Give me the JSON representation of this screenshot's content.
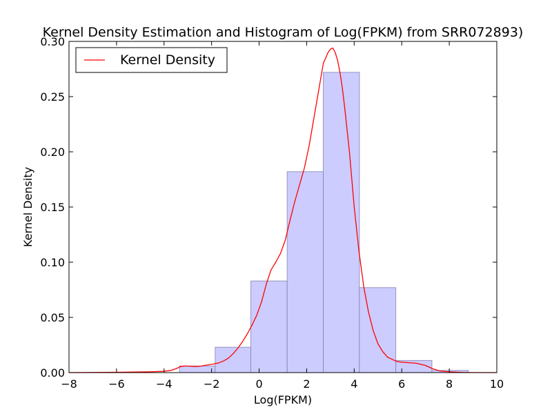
{
  "chart_data": {
    "type": "bar",
    "title": "Kernel Density Estimation and Histogram of Log(FPKM) from SRR072893)",
    "xlabel": "Log(FPKM)",
    "ylabel": "Kernel Density",
    "xlim": [
      -8,
      10
    ],
    "ylim": [
      0,
      0.3
    ],
    "xticks": [
      -8,
      -6,
      -4,
      -2,
      0,
      2,
      4,
      6,
      8,
      10
    ],
    "yticks": [
      0.0,
      0.05,
      0.1,
      0.15,
      0.2,
      0.25,
      0.3
    ],
    "xtick_labels": [
      "−8",
      "−6",
      "−4",
      "−2",
      "0",
      "2",
      "4",
      "6",
      "8",
      "10"
    ],
    "ytick_labels": [
      "0.00",
      "0.05",
      "0.10",
      "0.15",
      "0.20",
      "0.25",
      "0.30"
    ],
    "legend": {
      "location": "top-left",
      "entries": [
        {
          "label": "Kernel Density",
          "color": "#ff0000"
        }
      ]
    },
    "grid": false,
    "histogram": {
      "color": "#ccccff",
      "edge_color": "#8080b0",
      "bins": [
        {
          "x0": -3.35,
          "x1": -1.85,
          "value": 0.006
        },
        {
          "x0": -1.85,
          "x1": -0.35,
          "value": 0.023
        },
        {
          "x0": -0.35,
          "x1": 1.18,
          "value": 0.083
        },
        {
          "x0": 1.18,
          "x1": 2.7,
          "value": 0.182
        },
        {
          "x0": 2.7,
          "x1": 4.22,
          "value": 0.272
        },
        {
          "x0": 4.22,
          "x1": 5.75,
          "value": 0.077
        },
        {
          "x0": 5.75,
          "x1": 7.27,
          "value": 0.011
        },
        {
          "x0": 7.27,
          "x1": 8.8,
          "value": 0.002
        }
      ]
    },
    "series": [
      {
        "name": "Kernel Density",
        "color": "#ff0000",
        "x": [
          -8,
          -6,
          -5,
          -4.5,
          -4,
          -3.7,
          -3.5,
          -3.3,
          -3.1,
          -2.9,
          -2.7,
          -2.5,
          -2.3,
          -2.1,
          -1.9,
          -1.7,
          -1.5,
          -1.3,
          -1.1,
          -0.9,
          -0.7,
          -0.5,
          -0.3,
          -0.1,
          0.1,
          0.3,
          0.5,
          0.7,
          0.9,
          1.1,
          1.3,
          1.5,
          1.7,
          1.9,
          2.1,
          2.3,
          2.5,
          2.7,
          2.9,
          3.0,
          3.1,
          3.2,
          3.3,
          3.4,
          3.5,
          3.6,
          3.8,
          4.0,
          4.2,
          4.4,
          4.6,
          4.8,
          5.0,
          5.2,
          5.4,
          5.6,
          5.8,
          6.0,
          6.3,
          6.6,
          7.0,
          7.3,
          7.6,
          8.0,
          8.5,
          9.0,
          10.0
        ],
        "y": [
          0.0,
          0.0003,
          0.0006,
          0.0008,
          0.0012,
          0.002,
          0.0035,
          0.0055,
          0.006,
          0.0058,
          0.0055,
          0.0057,
          0.0065,
          0.0072,
          0.0078,
          0.0088,
          0.0105,
          0.013,
          0.017,
          0.022,
          0.028,
          0.035,
          0.043,
          0.052,
          0.064,
          0.08,
          0.093,
          0.1,
          0.108,
          0.12,
          0.138,
          0.155,
          0.17,
          0.185,
          0.205,
          0.23,
          0.255,
          0.28,
          0.29,
          0.293,
          0.294,
          0.29,
          0.283,
          0.272,
          0.258,
          0.24,
          0.2,
          0.15,
          0.11,
          0.078,
          0.055,
          0.038,
          0.026,
          0.019,
          0.014,
          0.012,
          0.01,
          0.0095,
          0.009,
          0.0085,
          0.0065,
          0.0035,
          0.0015,
          0.0007,
          0.0002,
          0.0001,
          0.0
        ]
      }
    ]
  }
}
